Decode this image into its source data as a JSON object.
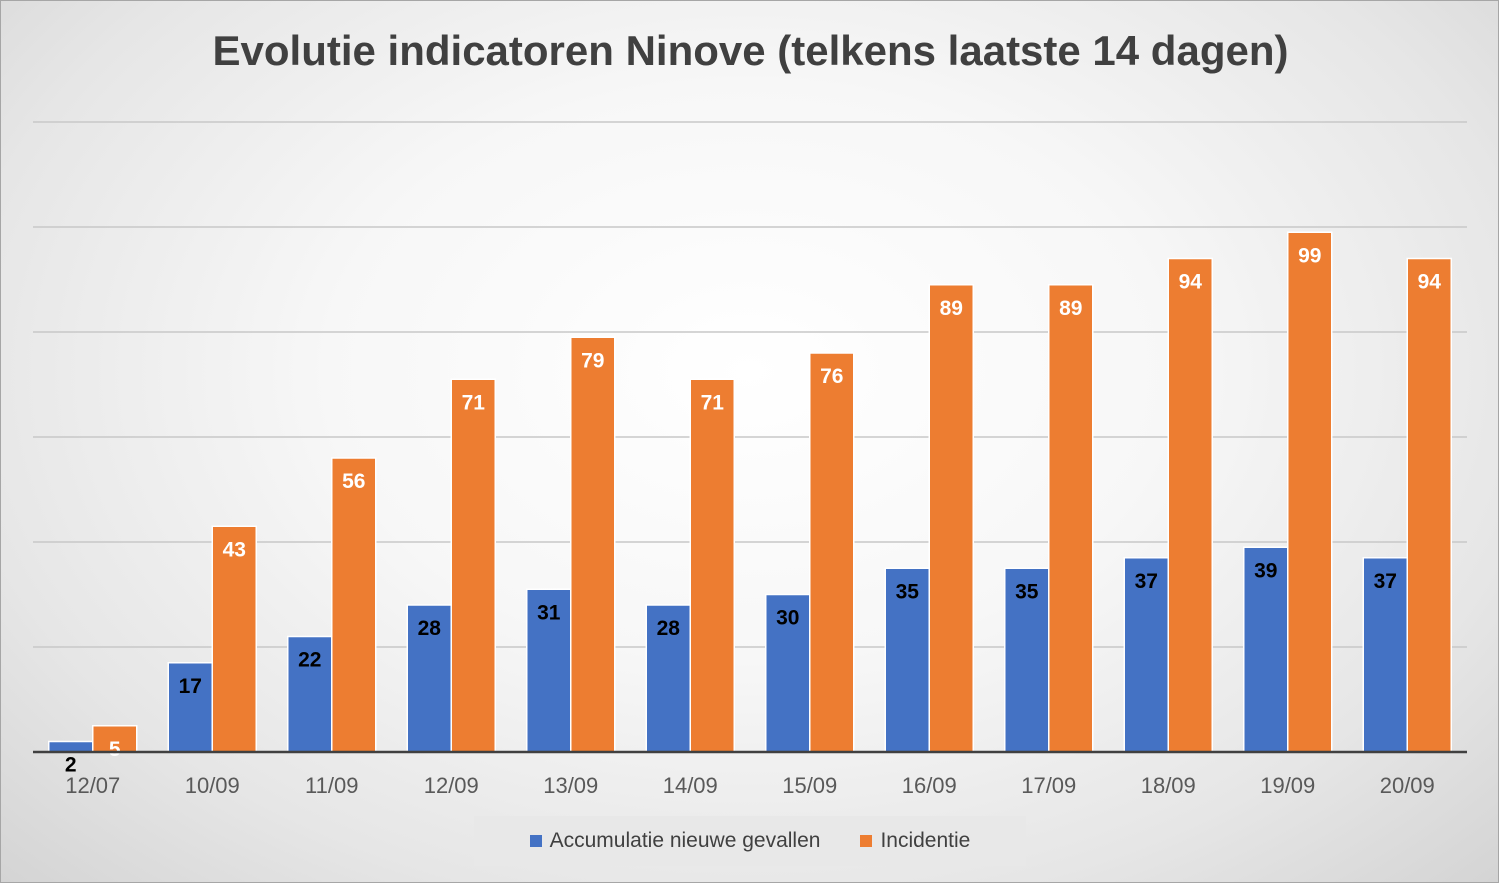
{
  "chart_data": {
    "type": "bar",
    "title": "Evolutie indicatoren Ninove (telkens laatste 14 dagen)",
    "categories": [
      "12/07",
      "10/09",
      "11/09",
      "12/09",
      "13/09",
      "14/09",
      "15/09",
      "16/09",
      "17/09",
      "18/09",
      "19/09",
      "20/09"
    ],
    "series": [
      {
        "name": "Accumulatie nieuwe gevallen",
        "color": "#4472c4",
        "values": [
          2,
          17,
          22,
          28,
          31,
          28,
          30,
          35,
          35,
          37,
          39,
          37
        ]
      },
      {
        "name": "Incidentie",
        "color": "#ed7d31",
        "values": [
          5,
          43,
          56,
          71,
          79,
          71,
          76,
          89,
          89,
          94,
          99,
          94
        ]
      }
    ],
    "ylim": [
      0,
      120
    ],
    "ytick_step": 20,
    "grid": true,
    "legend": "bottom"
  }
}
